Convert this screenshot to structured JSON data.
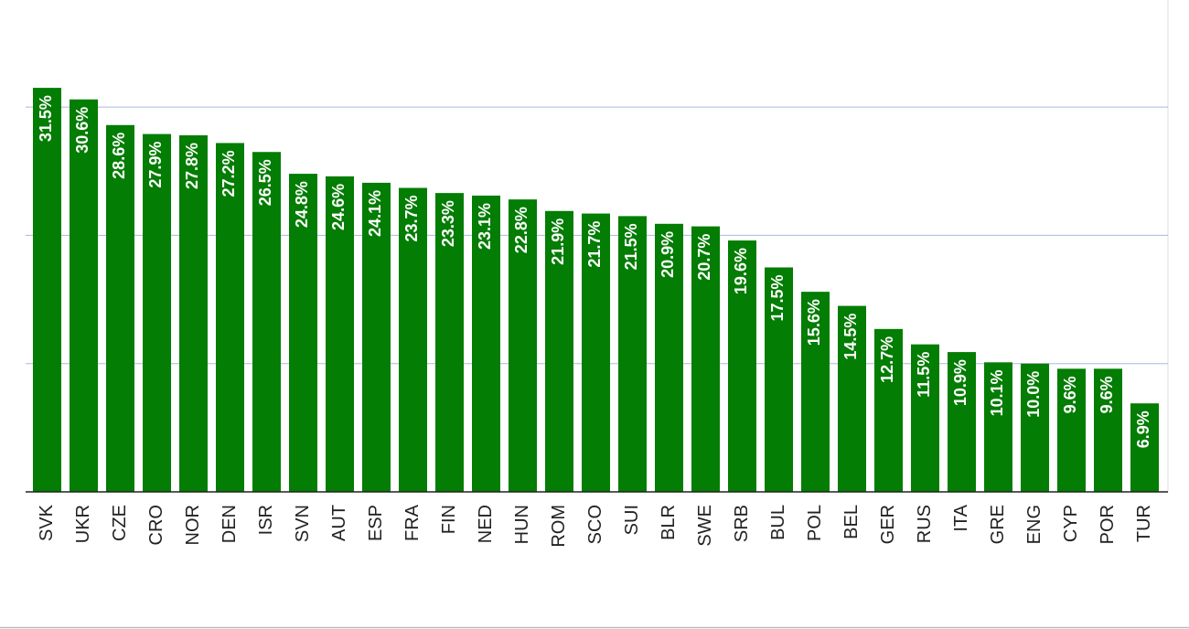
{
  "chart_data": {
    "type": "bar",
    "categories": [
      "SVK",
      "UKR",
      "CZE",
      "CRO",
      "NOR",
      "DEN",
      "ISR",
      "SVN",
      "AUT",
      "ESP",
      "FRA",
      "FIN",
      "NED",
      "HUN",
      "ROM",
      "SCO",
      "SUI",
      "BLR",
      "SWE",
      "SRB",
      "BUL",
      "POL",
      "BEL",
      "GER",
      "RUS",
      "ITA",
      "GRE",
      "ENG",
      "CYP",
      "POR",
      "TUR"
    ],
    "values": [
      31.5,
      30.6,
      28.6,
      27.9,
      27.8,
      27.2,
      26.5,
      24.8,
      24.6,
      24.1,
      23.7,
      23.3,
      23.1,
      22.8,
      21.9,
      21.7,
      21.5,
      20.9,
      20.7,
      19.6,
      17.5,
      15.6,
      14.5,
      12.7,
      11.5,
      10.9,
      10.1,
      10.0,
      9.6,
      9.6,
      6.9
    ],
    "value_labels": [
      "31.5%",
      "30.6%",
      "28.6%",
      "27.9%",
      "27.8%",
      "27.2%",
      "26.5%",
      "24.8%",
      "24.6%",
      "24.1%",
      "23.7%",
      "23.3%",
      "23.1%",
      "22.8%",
      "21.9%",
      "21.7%",
      "21.5%",
      "20.9%",
      "20.7%",
      "19.6%",
      "17.5%",
      "15.6%",
      "14.5%",
      "12.7%",
      "11.5%",
      "10.9%",
      "10.1%",
      "10.0%",
      "9.6%",
      "9.6%",
      "6.9%"
    ],
    "color": "#037d03",
    "ylim": [
      0,
      38.35
    ],
    "yticks": [
      10,
      20,
      30
    ],
    "grid": true
  }
}
